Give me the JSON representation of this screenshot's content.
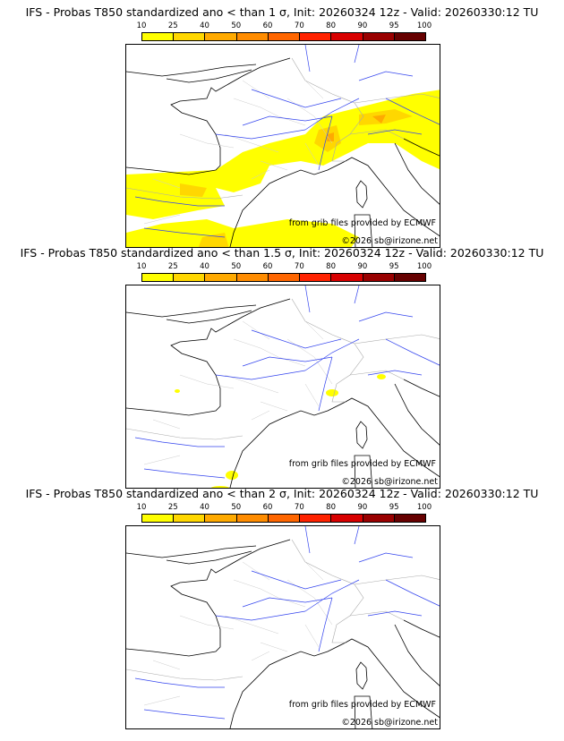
{
  "colorbar": {
    "ticks": [
      "10",
      "25",
      "40",
      "50",
      "60",
      "70",
      "80",
      "90",
      "95",
      "100"
    ],
    "colors": [
      "#ffff00",
      "#ffd700",
      "#ffaa00",
      "#ff8c00",
      "#ff6600",
      "#ff2200",
      "#d80000",
      "#990000",
      "#660000"
    ]
  },
  "panels": [
    {
      "title": "IFS - Probas T850  standardized ano < than 1 σ, Init: 20260324 12z - Valid: 20260330:12 TU",
      "credit": "from grib files provided by ECMWF",
      "copyright": "©2026 sb@irizone.net"
    },
    {
      "title": "IFS - Probas T850  standardized ano < than 1.5 σ, Init: 20260324 12z - Valid: 20260330:12 TU",
      "credit": "from grib files provided by ECMWF",
      "copyright": "©2026 sb@irizone.net"
    },
    {
      "title": "IFS - Probas T850  standardized ano < than 2 σ, Init: 20260324 12z - Valid: 20260330:12 TU",
      "credit": "from grib files provided by ECMWF",
      "copyright": "©2026 sb@irizone.net"
    }
  ]
}
